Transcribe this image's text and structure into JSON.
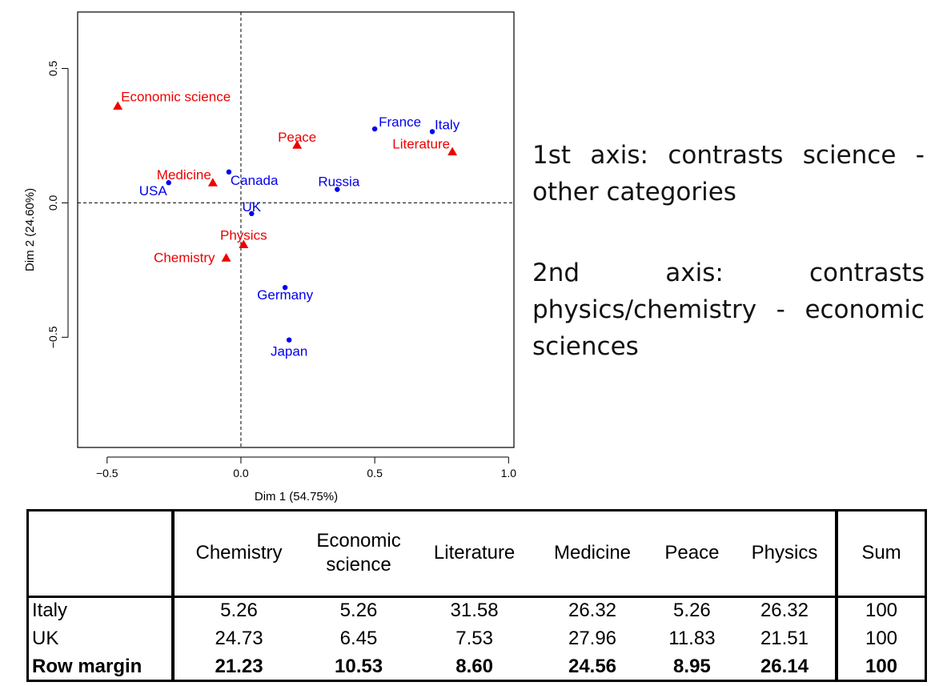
{
  "chart_data": {
    "type": "scatter",
    "xlabel": "Dim 1 (54.75%)",
    "ylabel": "Dim 2 (24.60%)",
    "xlim": [
      -0.61,
      1.02
    ],
    "ylim": [
      -0.91,
      0.71
    ],
    "xticks": [
      "−0.5",
      "0.0",
      "0.5",
      "1.0"
    ],
    "xtick_values": [
      -0.5,
      0.0,
      0.5,
      1.0
    ],
    "yticks": [
      "−0.5",
      "0.0",
      "0.5"
    ],
    "ytick_values": [
      -0.5,
      0.0,
      0.5
    ],
    "reference_lines": {
      "x": 0,
      "y": 0,
      "style": "dashed"
    },
    "series": [
      {
        "color": "#0000ee",
        "marker": "circle",
        "points": [
          {
            "label": "France",
            "x": 0.5,
            "y": 0.275
          },
          {
            "label": "Italy",
            "x": 0.715,
            "y": 0.265
          },
          {
            "label": "Canada",
            "x": -0.045,
            "y": 0.115
          },
          {
            "label": "USA",
            "x": -0.27,
            "y": 0.075
          },
          {
            "label": "Russia",
            "x": 0.36,
            "y": 0.05
          },
          {
            "label": "UK",
            "x": 0.04,
            "y": -0.04
          },
          {
            "label": "Germany",
            "x": 0.165,
            "y": -0.315
          },
          {
            "label": "Japan",
            "x": 0.18,
            "y": -0.51
          }
        ]
      },
      {
        "color": "#ee0000",
        "marker": "triangle",
        "points": [
          {
            "label": "Economic science",
            "x": -0.46,
            "y": 0.36
          },
          {
            "label": "Peace",
            "x": 0.21,
            "y": 0.215
          },
          {
            "label": "Literature",
            "x": 0.79,
            "y": 0.19
          },
          {
            "label": "Medicine",
            "x": -0.105,
            "y": 0.075
          },
          {
            "label": "Physics",
            "x": 0.01,
            "y": -0.155
          },
          {
            "label": "Chemistry",
            "x": -0.055,
            "y": -0.205
          }
        ]
      }
    ]
  },
  "text": {
    "axis1": "1st axis: contrasts science - other categories",
    "axis2": "2nd axis: contrasts physics/chemistry - economic sciences"
  },
  "table": {
    "headers": [
      "Chemistry",
      "Economic science",
      "Literature",
      "Medicine",
      "Peace",
      "Physics"
    ],
    "sum_header": "Sum",
    "rows": [
      {
        "label": "Italy",
        "values": [
          "5.26",
          "5.26",
          "31.58",
          "26.32",
          "5.26",
          "26.32"
        ],
        "sum": "100"
      },
      {
        "label": "UK",
        "values": [
          "24.73",
          "6.45",
          "7.53",
          "27.96",
          "11.83",
          "21.51"
        ],
        "sum": "100"
      },
      {
        "label": "Row margin",
        "values": [
          "21.23",
          "10.53",
          "8.60",
          "24.56",
          "8.95",
          "26.14"
        ],
        "sum": "100"
      }
    ]
  }
}
